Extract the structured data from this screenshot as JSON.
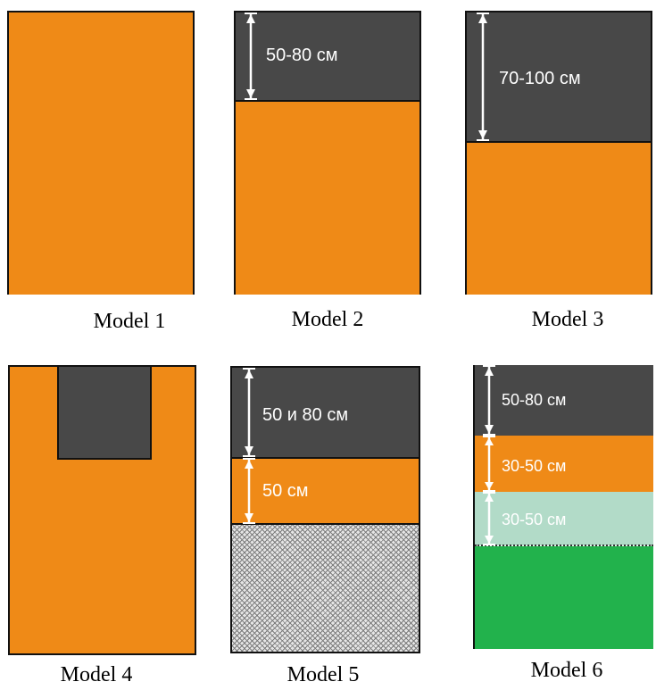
{
  "models": [
    {
      "caption": "Model 1"
    },
    {
      "caption": "Model 2",
      "dimension_labels": [
        "50-80 см"
      ]
    },
    {
      "caption": "Model 3",
      "dimension_labels": [
        "70-100 см"
      ]
    },
    {
      "caption": "Model 4"
    },
    {
      "caption": "Model 5",
      "dimension_labels": [
        "50 и 80 см",
        "50 см"
      ]
    },
    {
      "caption": "Model 6",
      "dimension_labels": [
        "50-80 см",
        "30-50 см",
        "30-50 см"
      ]
    }
  ],
  "colors": {
    "dark": "#484848",
    "orange": "#ef8a17",
    "mint": "#b2dbc8",
    "green": "#22b24c",
    "mesh": "#e6e6e6",
    "outline": "#111111",
    "label": "#ffffff"
  }
}
